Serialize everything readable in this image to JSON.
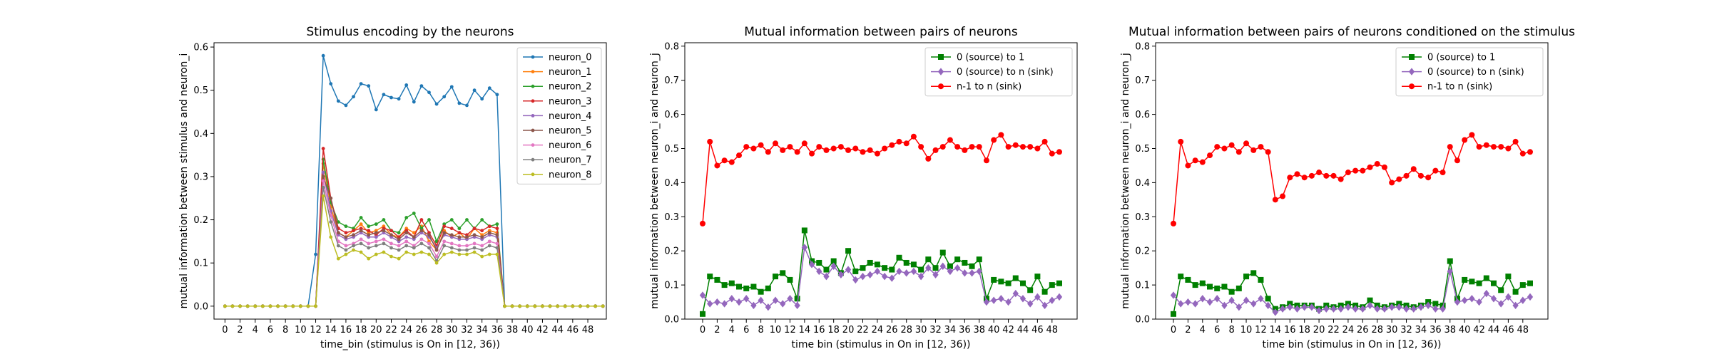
{
  "chart_data": [
    {
      "type": "line",
      "title": "Stimulus encoding by the neurons",
      "xlabel": "time_bin (stimulus is On in [12, 36))",
      "ylabel": "mutual information between stimulus and neuron_i",
      "xlim": [
        -1.45,
        50.45
      ],
      "ylim": [
        -0.03,
        0.61
      ],
      "xticks": [
        0,
        2,
        4,
        6,
        8,
        10,
        12,
        14,
        16,
        18,
        20,
        22,
        24,
        26,
        28,
        30,
        32,
        34,
        36,
        38,
        40,
        42,
        44,
        46,
        48
      ],
      "yticks": [
        0.0,
        0.1,
        0.2,
        0.3,
        0.4,
        0.5,
        0.6
      ],
      "ytick_decimals": 1,
      "legend": "top-right",
      "marker_size": 2.4,
      "series": [
        {
          "name": "neuron_0",
          "color": "#1f77b4",
          "marker": "circle",
          "values": [
            0,
            0,
            0,
            0,
            0,
            0,
            0,
            0,
            0,
            0,
            0,
            0,
            0.12,
            0.58,
            0.515,
            0.475,
            0.465,
            0.485,
            0.515,
            0.51,
            0.455,
            0.49,
            0.483,
            0.48,
            0.512,
            0.473,
            0.51,
            0.495,
            0.468,
            0.485,
            0.508,
            0.47,
            0.465,
            0.5,
            0.48,
            0.505,
            0.49,
            0,
            0,
            0,
            0,
            0,
            0,
            0,
            0,
            0,
            0,
            0,
            0,
            0,
            0
          ]
        },
        {
          "name": "neuron_1",
          "color": "#ff7f0e",
          "marker": "circle",
          "values": [
            0,
            0,
            0,
            0,
            0,
            0,
            0,
            0,
            0,
            0,
            0,
            0,
            0,
            0.33,
            0.23,
            0.17,
            0.16,
            0.175,
            0.19,
            0.17,
            0.175,
            0.185,
            0.165,
            0.16,
            0.18,
            0.17,
            0.185,
            0.15,
            0.13,
            0.175,
            0.16,
            0.17,
            0.155,
            0.18,
            0.165,
            0.175,
            0.17,
            0,
            0,
            0,
            0,
            0,
            0,
            0,
            0,
            0,
            0,
            0,
            0,
            0,
            0
          ]
        },
        {
          "name": "neuron_2",
          "color": "#2ca02c",
          "marker": "circle",
          "values": [
            0,
            0,
            0,
            0,
            0,
            0,
            0,
            0,
            0,
            0,
            0,
            0,
            0,
            0.34,
            0.24,
            0.195,
            0.185,
            0.18,
            0.205,
            0.185,
            0.19,
            0.2,
            0.175,
            0.17,
            0.205,
            0.215,
            0.18,
            0.2,
            0.15,
            0.19,
            0.2,
            0.18,
            0.2,
            0.18,
            0.2,
            0.185,
            0.19,
            0,
            0,
            0,
            0,
            0,
            0,
            0,
            0,
            0,
            0,
            0,
            0,
            0,
            0
          ]
        },
        {
          "name": "neuron_3",
          "color": "#d62728",
          "marker": "circle",
          "values": [
            0,
            0,
            0,
            0,
            0,
            0,
            0,
            0,
            0,
            0,
            0,
            0,
            0,
            0.365,
            0.25,
            0.18,
            0.17,
            0.175,
            0.18,
            0.175,
            0.165,
            0.18,
            0.175,
            0.16,
            0.175,
            0.16,
            0.2,
            0.17,
            0.14,
            0.185,
            0.18,
            0.17,
            0.165,
            0.18,
            0.175,
            0.185,
            0.18,
            0,
            0,
            0,
            0,
            0,
            0,
            0,
            0,
            0,
            0,
            0,
            0,
            0,
            0
          ]
        },
        {
          "name": "neuron_4",
          "color": "#9467bd",
          "marker": "circle",
          "values": [
            0,
            0,
            0,
            0,
            0,
            0,
            0,
            0,
            0,
            0,
            0,
            0,
            0,
            0.31,
            0.22,
            0.165,
            0.155,
            0.16,
            0.17,
            0.16,
            0.16,
            0.17,
            0.16,
            0.15,
            0.16,
            0.155,
            0.17,
            0.16,
            0.135,
            0.165,
            0.16,
            0.155,
            0.155,
            0.16,
            0.155,
            0.165,
            0.16,
            0,
            0,
            0,
            0,
            0,
            0,
            0,
            0,
            0,
            0,
            0,
            0,
            0,
            0
          ]
        },
        {
          "name": "neuron_5",
          "color": "#8c564b",
          "marker": "circle",
          "values": [
            0,
            0,
            0,
            0,
            0,
            0,
            0,
            0,
            0,
            0,
            0,
            0,
            0,
            0.3,
            0.25,
            0.17,
            0.16,
            0.165,
            0.175,
            0.165,
            0.17,
            0.175,
            0.165,
            0.155,
            0.17,
            0.16,
            0.175,
            0.165,
            0.13,
            0.17,
            0.165,
            0.16,
            0.16,
            0.165,
            0.16,
            0.17,
            0.165,
            0,
            0,
            0,
            0,
            0,
            0,
            0,
            0,
            0,
            0,
            0,
            0,
            0,
            0
          ]
        },
        {
          "name": "neuron_6",
          "color": "#e377c2",
          "marker": "circle",
          "values": [
            0,
            0,
            0,
            0,
            0,
            0,
            0,
            0,
            0,
            0,
            0,
            0,
            0,
            0.29,
            0.21,
            0.15,
            0.14,
            0.145,
            0.155,
            0.145,
            0.15,
            0.155,
            0.145,
            0.14,
            0.15,
            0.14,
            0.155,
            0.145,
            0.115,
            0.15,
            0.145,
            0.14,
            0.14,
            0.145,
            0.14,
            0.15,
            0.145,
            0,
            0,
            0,
            0,
            0,
            0,
            0,
            0,
            0,
            0,
            0,
            0,
            0,
            0
          ]
        },
        {
          "name": "neuron_7",
          "color": "#7f7f7f",
          "marker": "circle",
          "values": [
            0,
            0,
            0,
            0,
            0,
            0,
            0,
            0,
            0,
            0,
            0,
            0,
            0,
            0.275,
            0.195,
            0.14,
            0.13,
            0.14,
            0.145,
            0.135,
            0.14,
            0.145,
            0.135,
            0.13,
            0.14,
            0.135,
            0.145,
            0.135,
            0.105,
            0.14,
            0.135,
            0.13,
            0.13,
            0.135,
            0.13,
            0.14,
            0.135,
            0,
            0,
            0,
            0,
            0,
            0,
            0,
            0,
            0,
            0,
            0,
            0,
            0,
            0
          ]
        },
        {
          "name": "neuron_8",
          "color": "#bcbd22",
          "marker": "circle",
          "values": [
            0,
            0,
            0,
            0,
            0,
            0,
            0,
            0,
            0,
            0,
            0,
            0,
            0,
            0.255,
            0.16,
            0.11,
            0.12,
            0.13,
            0.125,
            0.11,
            0.12,
            0.125,
            0.115,
            0.11,
            0.125,
            0.12,
            0.125,
            0.12,
            0.1,
            0.12,
            0.125,
            0.12,
            0.12,
            0.125,
            0.115,
            0.12,
            0.12,
            0,
            0,
            0,
            0,
            0,
            0,
            0,
            0,
            0,
            0,
            0,
            0,
            0,
            0
          ]
        }
      ]
    },
    {
      "type": "line",
      "title": "Mutual information between pairs of neurons",
      "xlabel": "time bin (stimulus in On in [12, 36))",
      "ylabel": "mutual information between neuron_i and neuron_j",
      "xlim": [
        -2.45,
        51.45
      ],
      "ylim": [
        0,
        0.81
      ],
      "xticks": [
        0,
        2,
        4,
        6,
        8,
        10,
        12,
        14,
        16,
        18,
        20,
        22,
        24,
        26,
        28,
        30,
        32,
        34,
        36,
        38,
        40,
        42,
        44,
        46,
        48
      ],
      "yticks": [
        0.0,
        0.1,
        0.2,
        0.3,
        0.4,
        0.5,
        0.6,
        0.7,
        0.8
      ],
      "ytick_decimals": 1,
      "legend": "top-right",
      "marker_size": 4,
      "series": [
        {
          "name": "0 (source) to 1",
          "color": "#008000",
          "marker": "square",
          "values": [
            0.015,
            0.125,
            0.115,
            0.1,
            0.105,
            0.095,
            0.09,
            0.095,
            0.08,
            0.09,
            0.125,
            0.135,
            0.115,
            0.06,
            0.26,
            0.17,
            0.165,
            0.145,
            0.17,
            0.135,
            0.2,
            0.14,
            0.15,
            0.165,
            0.16,
            0.15,
            0.145,
            0.18,
            0.165,
            0.16,
            0.145,
            0.175,
            0.15,
            0.195,
            0.155,
            0.175,
            0.165,
            0.155,
            0.175,
            0.06,
            0.115,
            0.11,
            0.105,
            0.12,
            0.105,
            0.085,
            0.125,
            0.08,
            0.1,
            0.105
          ]
        },
        {
          "name": "0 (source) to n (sink)",
          "color": "#9467bd",
          "marker": "diamond",
          "values": [
            0.07,
            0.045,
            0.05,
            0.045,
            0.06,
            0.05,
            0.06,
            0.04,
            0.055,
            0.035,
            0.055,
            0.045,
            0.06,
            0.04,
            0.21,
            0.16,
            0.14,
            0.125,
            0.155,
            0.13,
            0.145,
            0.115,
            0.125,
            0.13,
            0.14,
            0.125,
            0.12,
            0.14,
            0.135,
            0.14,
            0.125,
            0.15,
            0.13,
            0.155,
            0.14,
            0.15,
            0.135,
            0.135,
            0.14,
            0.05,
            0.055,
            0.06,
            0.05,
            0.075,
            0.06,
            0.045,
            0.065,
            0.04,
            0.055,
            0.065
          ]
        },
        {
          "name": "n-1 to n (sink)",
          "color": "#ff0000",
          "marker": "circle",
          "values": [
            0.28,
            0.52,
            0.45,
            0.465,
            0.46,
            0.48,
            0.505,
            0.5,
            0.51,
            0.49,
            0.515,
            0.495,
            0.505,
            0.49,
            0.515,
            0.485,
            0.505,
            0.495,
            0.5,
            0.505,
            0.495,
            0.5,
            0.49,
            0.495,
            0.485,
            0.5,
            0.51,
            0.52,
            0.515,
            0.535,
            0.505,
            0.47,
            0.495,
            0.505,
            0.525,
            0.505,
            0.495,
            0.505,
            0.505,
            0.465,
            0.525,
            0.54,
            0.505,
            0.51,
            0.505,
            0.505,
            0.5,
            0.52,
            0.485,
            0.49
          ]
        }
      ]
    },
    {
      "type": "line",
      "title": "Mutual information between pairs of neurons conditioned on the stimulus",
      "xlabel": "time bin (stimulus in On in [12, 36))",
      "ylabel": "mutual information between neuron_i and neuron_j",
      "xlim": [
        -2.45,
        51.45
      ],
      "ylim": [
        0,
        0.81
      ],
      "xticks": [
        0,
        2,
        4,
        6,
        8,
        10,
        12,
        14,
        16,
        18,
        20,
        22,
        24,
        26,
        28,
        30,
        32,
        34,
        36,
        38,
        40,
        42,
        44,
        46,
        48
      ],
      "yticks": [
        0.0,
        0.1,
        0.2,
        0.3,
        0.4,
        0.5,
        0.6,
        0.7,
        0.8
      ],
      "ytick_decimals": 1,
      "legend": "top-right",
      "marker_size": 4,
      "series": [
        {
          "name": "0 (source) to 1",
          "color": "#008000",
          "marker": "square",
          "values": [
            0.015,
            0.125,
            0.115,
            0.1,
            0.105,
            0.095,
            0.09,
            0.095,
            0.08,
            0.09,
            0.125,
            0.135,
            0.115,
            0.06,
            0.03,
            0.035,
            0.045,
            0.04,
            0.04,
            0.04,
            0.03,
            0.04,
            0.035,
            0.04,
            0.045,
            0.04,
            0.035,
            0.055,
            0.04,
            0.035,
            0.04,
            0.045,
            0.04,
            0.035,
            0.04,
            0.05,
            0.045,
            0.04,
            0.17,
            0.06,
            0.115,
            0.11,
            0.105,
            0.12,
            0.105,
            0.085,
            0.125,
            0.08,
            0.1,
            0.105
          ]
        },
        {
          "name": "0 (source) to n (sink)",
          "color": "#9467bd",
          "marker": "diamond",
          "values": [
            0.07,
            0.045,
            0.05,
            0.045,
            0.06,
            0.05,
            0.06,
            0.04,
            0.055,
            0.035,
            0.055,
            0.045,
            0.06,
            0.04,
            0.02,
            0.03,
            0.035,
            0.03,
            0.035,
            0.035,
            0.025,
            0.03,
            0.03,
            0.03,
            0.035,
            0.03,
            0.03,
            0.04,
            0.03,
            0.03,
            0.035,
            0.035,
            0.03,
            0.03,
            0.035,
            0.04,
            0.03,
            0.03,
            0.14,
            0.05,
            0.055,
            0.06,
            0.05,
            0.075,
            0.06,
            0.045,
            0.065,
            0.04,
            0.055,
            0.065
          ]
        },
        {
          "name": "n-1 to n (sink)",
          "color": "#ff0000",
          "marker": "circle",
          "values": [
            0.28,
            0.52,
            0.45,
            0.465,
            0.46,
            0.48,
            0.505,
            0.5,
            0.51,
            0.49,
            0.515,
            0.495,
            0.505,
            0.49,
            0.35,
            0.36,
            0.415,
            0.425,
            0.415,
            0.42,
            0.43,
            0.42,
            0.42,
            0.41,
            0.43,
            0.435,
            0.435,
            0.445,
            0.455,
            0.445,
            0.4,
            0.41,
            0.42,
            0.44,
            0.42,
            0.415,
            0.435,
            0.43,
            0.505,
            0.465,
            0.525,
            0.54,
            0.505,
            0.51,
            0.505,
            0.505,
            0.5,
            0.52,
            0.485,
            0.49
          ]
        }
      ]
    }
  ]
}
